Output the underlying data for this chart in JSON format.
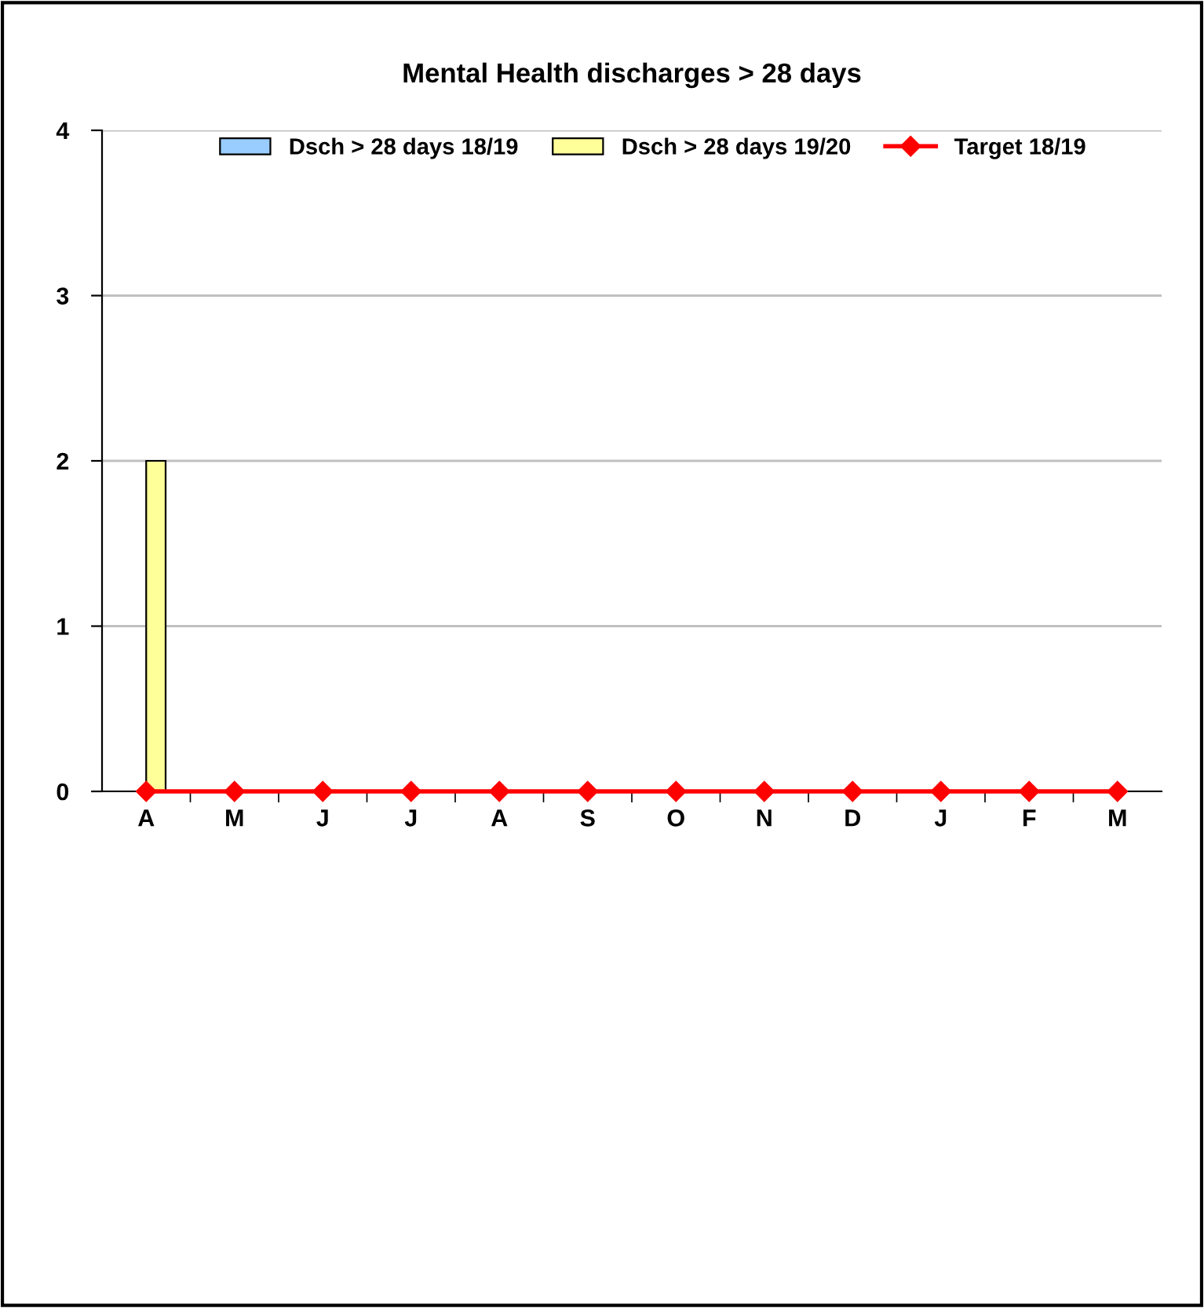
{
  "chart_data": {
    "type": "bar",
    "title": "Mental Health discharges > 28 days",
    "categories": [
      "A",
      "M",
      "J",
      "J",
      "A",
      "S",
      "O",
      "N",
      "D",
      "J",
      "F",
      "M"
    ],
    "series": [
      {
        "name": "Dsch > 28 days 18/19",
        "color": "#99ccff",
        "values": [
          null,
          null,
          null,
          null,
          null,
          null,
          null,
          null,
          null,
          null,
          null,
          null
        ]
      },
      {
        "name": "Dsch > 28 days 19/20",
        "color": "#ffff99",
        "values": [
          2,
          null,
          null,
          null,
          null,
          null,
          null,
          null,
          null,
          null,
          null,
          null
        ]
      },
      {
        "name": "Target 18/19",
        "type": "line",
        "color": "#ff0000",
        "marker": "diamond",
        "values": [
          0,
          0,
          0,
          0,
          0,
          0,
          0,
          0,
          0,
          0,
          0,
          0
        ]
      }
    ],
    "ylim": [
      0,
      4
    ],
    "yticks": [
      0,
      1,
      2,
      3,
      4
    ],
    "grid": "y",
    "legend": "top"
  }
}
